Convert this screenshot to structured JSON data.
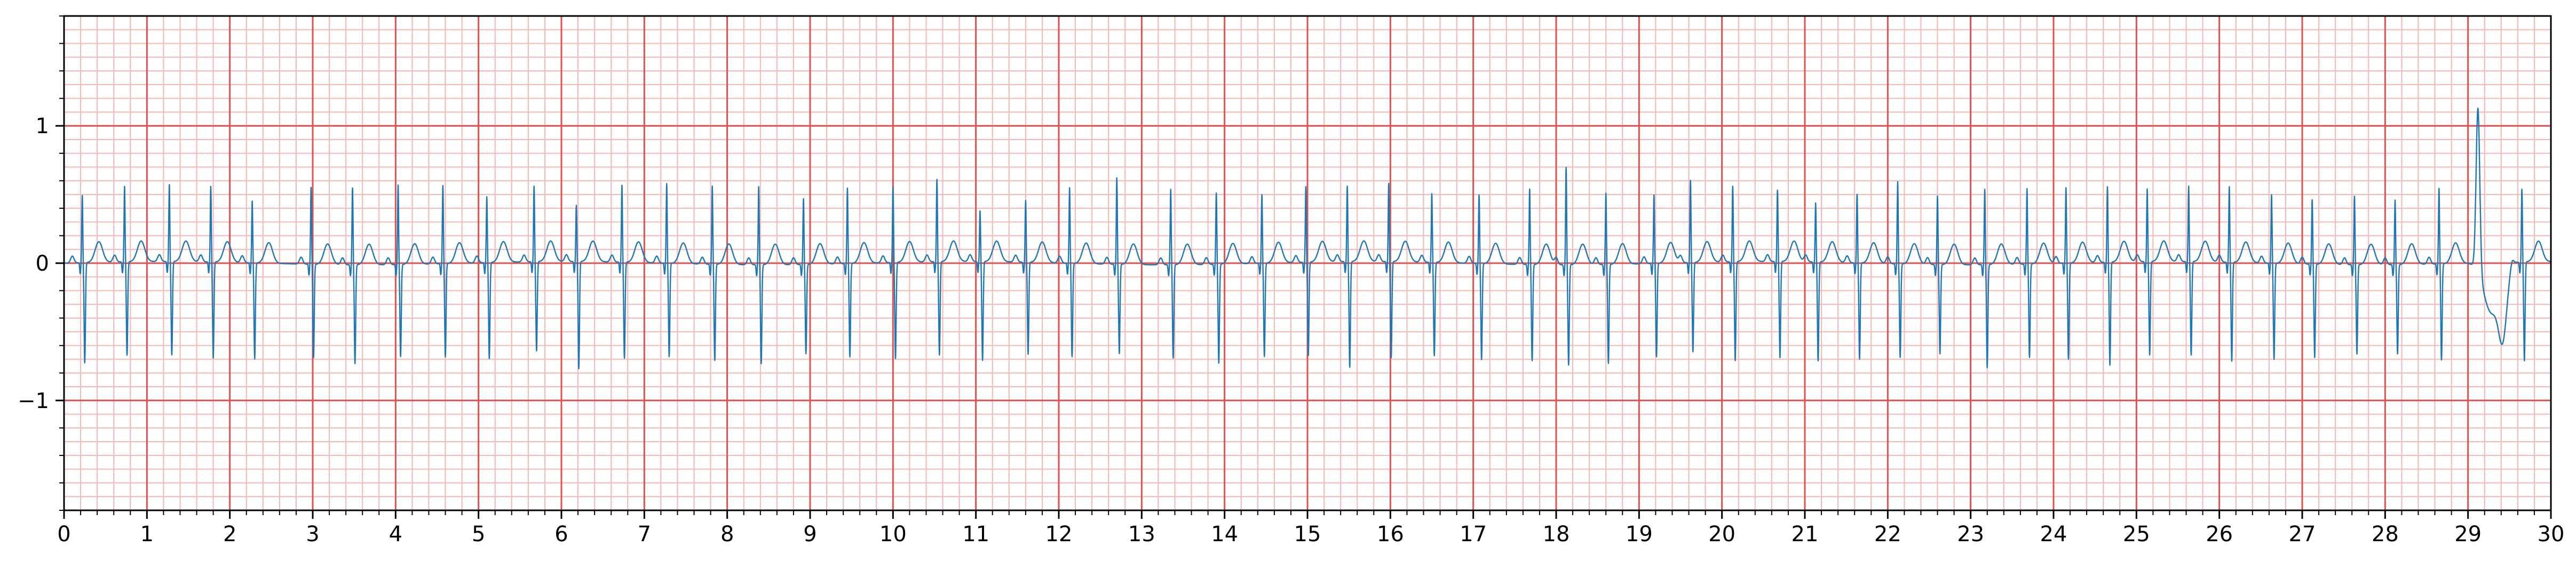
{
  "chart_data": {
    "type": "line",
    "title": "",
    "xlabel": "",
    "ylabel": "",
    "xlim": [
      0,
      30
    ],
    "ylim": [
      -1.8,
      1.8
    ],
    "x_ticks": [
      0,
      1,
      2,
      3,
      4,
      5,
      6,
      7,
      8,
      9,
      10,
      11,
      12,
      13,
      14,
      15,
      16,
      17,
      18,
      19,
      20,
      21,
      22,
      23,
      24,
      25,
      26,
      27,
      28,
      29,
      30
    ],
    "x_tick_labels": [
      "0",
      "1",
      "2",
      "3",
      "4",
      "5",
      "6",
      "7",
      "8",
      "9",
      "10",
      "11",
      "12",
      "13",
      "14",
      "15",
      "16",
      "17",
      "18",
      "19",
      "20",
      "21",
      "22",
      "23",
      "24",
      "25",
      "26",
      "27",
      "28",
      "29",
      "30"
    ],
    "y_ticks": [
      -1,
      0,
      1
    ],
    "y_tick_labels": [
      "−1",
      "0",
      "1"
    ],
    "grid": {
      "major": true,
      "minor": true,
      "major_x_step": 1,
      "major_y_step": 1,
      "minor_x_step": 0.2,
      "minor_y_step": 0.1,
      "major_color": "#e05050",
      "minor_color": "#f7b6b6"
    },
    "series": [
      {
        "color": "#1f77b4",
        "beat_times": [
          0.22,
          0.73,
          1.27,
          1.77,
          2.27,
          2.98,
          3.48,
          4.03,
          4.57,
          5.1,
          5.67,
          6.18,
          6.73,
          7.27,
          7.82,
          8.38,
          8.92,
          9.45,
          10.0,
          10.53,
          11.05,
          11.6,
          12.13,
          12.7,
          13.35,
          13.9,
          14.45,
          14.98,
          15.48,
          15.98,
          16.5,
          17.07,
          17.68,
          18.12,
          18.6,
          19.18,
          19.62,
          20.13,
          20.67,
          21.13,
          21.63,
          22.12,
          22.6,
          23.17,
          23.68,
          24.15,
          24.65,
          25.13,
          25.63,
          26.12,
          26.63,
          27.12,
          27.63,
          28.12,
          28.65,
          29.12,
          29.65
        ],
        "r_amplitudes": [
          0.49,
          0.55,
          0.56,
          0.55,
          0.45,
          0.56,
          0.56,
          0.58,
          0.57,
          0.48,
          0.55,
          0.41,
          0.56,
          0.58,
          0.57,
          0.57,
          0.48,
          0.55,
          0.55,
          0.6,
          0.37,
          0.45,
          0.55,
          0.63,
          0.55,
          0.52,
          0.5,
          0.55,
          0.55,
          0.57,
          0.5,
          0.5,
          0.55,
          0.71,
          0.52,
          0.5,
          0.6,
          0.55,
          0.52,
          0.43,
          0.5,
          0.6,
          0.5,
          0.55,
          0.55,
          0.55,
          0.55,
          0.53,
          0.55,
          0.55,
          0.5,
          0.47,
          0.5,
          0.47,
          0.55,
          1.2,
          0.53
        ],
        "s_amplitudes": [
          -0.73,
          -0.68,
          -0.68,
          -0.7,
          -0.7,
          -0.68,
          -0.72,
          -0.67,
          -0.68,
          -0.7,
          -0.65,
          -0.78,
          -0.7,
          -0.68,
          -0.7,
          -0.72,
          -0.65,
          -0.68,
          -0.7,
          -0.68,
          -0.72,
          -0.67,
          -0.68,
          -0.65,
          -0.68,
          -0.72,
          -0.68,
          -0.68,
          -0.77,
          -0.7,
          -0.68,
          -0.7,
          -0.7,
          -0.73,
          -0.72,
          -0.68,
          -0.65,
          -0.72,
          -0.7,
          -0.72,
          -0.7,
          -0.68,
          -0.65,
          -0.75,
          -0.68,
          -0.7,
          -0.75,
          -0.68,
          -0.68,
          -0.72,
          -0.7,
          -0.68,
          -0.65,
          -0.65,
          -0.7,
          -0.15,
          -0.72
        ],
        "ectopic_beat": {
          "time": 29.12,
          "peak": 1.2,
          "trough": -0.8
        }
      }
    ]
  }
}
